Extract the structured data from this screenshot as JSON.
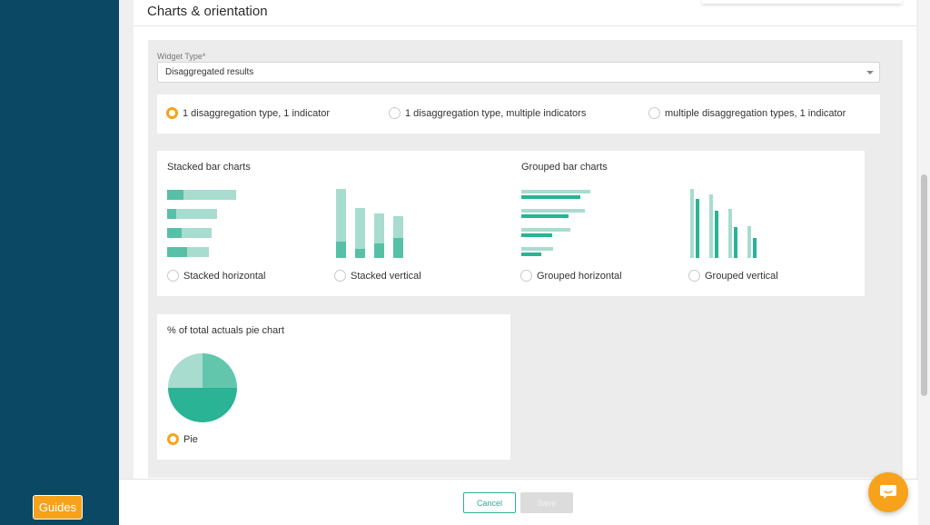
{
  "sidebar": {
    "guides_label": "Guides"
  },
  "section": {
    "title": "Charts & orientation"
  },
  "widget_type": {
    "label": "Widget Type*",
    "value": "Disaggregated results"
  },
  "mode_options": [
    {
      "label": "1 disaggregation type, 1 indicator",
      "checked": true
    },
    {
      "label": "1 disaggregation type, multiple indicators",
      "checked": false
    },
    {
      "label": "multiple disaggregation types, 1 indicator",
      "checked": false
    }
  ],
  "stacked": {
    "heading": "Stacked bar charts",
    "horizontal_label": "Stacked horizontal",
    "vertical_label": "Stacked vertical"
  },
  "grouped": {
    "heading": "Grouped bar charts",
    "horizontal_label": "Grouped horizontal",
    "vertical_label": "Grouped vertical"
  },
  "pie": {
    "heading": "% of total actuals pie chart",
    "label": "Pie",
    "checked": true
  },
  "footer": {
    "cancel_label": "Cancel",
    "save_label": "Save"
  },
  "colors": {
    "accent": "#f7a21b",
    "teal": "#2ab394",
    "teal_light": "#a8dccf",
    "sidebar": "#0b4863"
  },
  "icons": {
    "chat": "chat-bubble-icon",
    "caret": "chevron-down-icon"
  }
}
